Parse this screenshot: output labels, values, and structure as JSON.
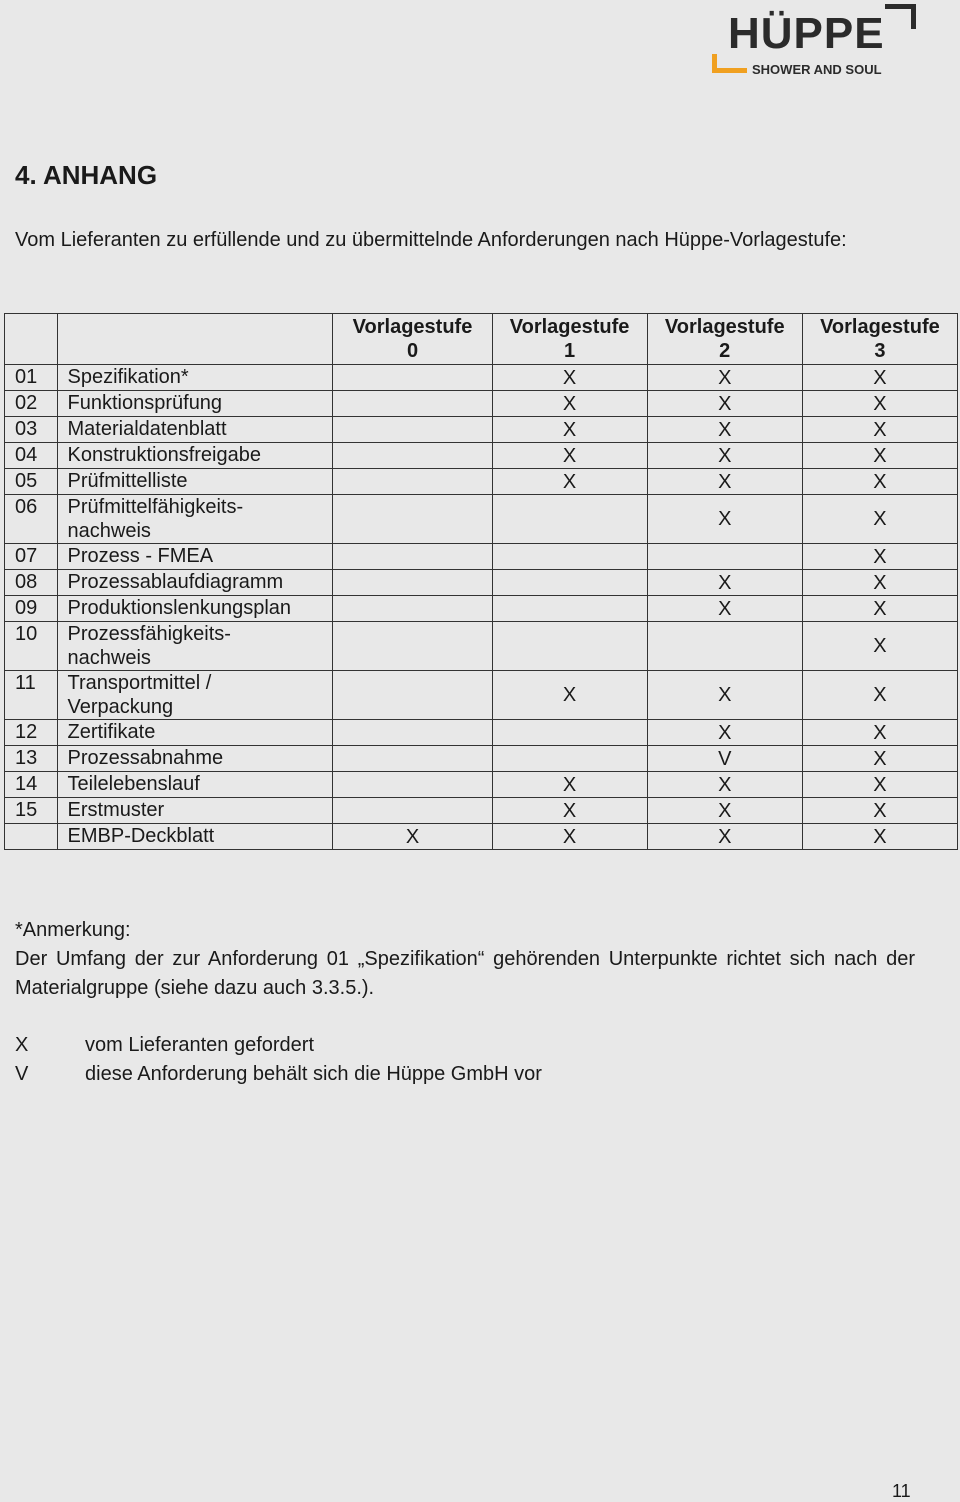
{
  "logo": {
    "word": "HÜPPE",
    "tagline": "SHOWER AND SOUL",
    "accent": "#f0a020"
  },
  "heading": "4. ANHANG",
  "intro": "Vom Lieferanten zu erfüllende und zu übermittelnde Anforderungen nach Hüppe-Vorlagestufe:",
  "table": {
    "headers": [
      "",
      "",
      "Vorlagestufe 0",
      "Vorlagestufe 1",
      "Vorlagestufe 2",
      "Vorlagestufe 3"
    ],
    "rows": [
      {
        "nr": "01",
        "name": "Spezifikation*",
        "v": [
          "",
          "X",
          "X",
          "X"
        ]
      },
      {
        "nr": "02",
        "name": "Funktionsprüfung",
        "v": [
          "",
          "X",
          "X",
          "X"
        ]
      },
      {
        "nr": "03",
        "name": "Materialdatenblatt",
        "v": [
          "",
          "X",
          "X",
          "X"
        ]
      },
      {
        "nr": "04",
        "name": "Konstruktionsfreigabe",
        "v": [
          "",
          "X",
          "X",
          "X"
        ]
      },
      {
        "nr": "05",
        "name": "Prüfmittelliste",
        "v": [
          "",
          "X",
          "X",
          "X"
        ]
      },
      {
        "nr": "06",
        "name": "Prüfmittelfähigkeits-\nnachweis",
        "v": [
          "",
          "",
          "X",
          "X"
        ]
      },
      {
        "nr": "07",
        "name": "Prozess - FMEA",
        "v": [
          "",
          "",
          "",
          "X"
        ]
      },
      {
        "nr": "08",
        "name": "Prozessablaufdiagramm",
        "v": [
          "",
          "",
          "X",
          "X"
        ]
      },
      {
        "nr": "09",
        "name": "Produktionslenkungsplan",
        "v": [
          "",
          "",
          "X",
          "X"
        ]
      },
      {
        "nr": "10",
        "name": "Prozessfähigkeits-\nnachweis",
        "v": [
          "",
          "",
          "",
          "X"
        ]
      },
      {
        "nr": "11",
        "name": "Transportmittel /\nVerpackung",
        "v": [
          "",
          "X",
          "X",
          "X"
        ]
      },
      {
        "nr": "12",
        "name": "Zertifikate",
        "v": [
          "",
          "",
          "X",
          "X"
        ]
      },
      {
        "nr": "13",
        "name": "Prozessabnahme",
        "v": [
          "",
          "",
          "V",
          "X"
        ]
      },
      {
        "nr": "14",
        "name": "Teilelebenslauf",
        "v": [
          "",
          "X",
          "X",
          "X"
        ]
      },
      {
        "nr": "15",
        "name": "Erstmuster",
        "v": [
          "",
          "X",
          "X",
          "X"
        ]
      },
      {
        "nr": "",
        "name": "EMBP-Deckblatt",
        "v": [
          "X",
          "X",
          "X",
          "X"
        ]
      }
    ]
  },
  "note": {
    "title": "*Anmerkung:",
    "text": "Der Umfang der zur Anforderung 01 „Spezifikation“ gehörenden Unterpunkte richtet sich nach der Materialgruppe (siehe dazu auch 3.3.5.)."
  },
  "legend": [
    {
      "key": "X",
      "text": "vom Lieferanten gefordert"
    },
    {
      "key": "V",
      "text": "diese Anforderung behält sich die Hüppe GmbH vor"
    }
  ],
  "page_number": "11"
}
